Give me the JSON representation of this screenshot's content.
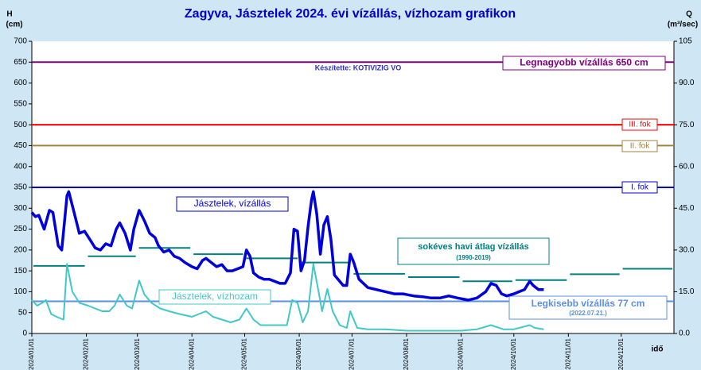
{
  "chart_data": {
    "type": "line",
    "title": "Zagyva, Jásztelek 2024. évi vízállás, vízhozam grafikon",
    "y_label": [
      "H",
      "(cm)"
    ],
    "y2_label": [
      "Q",
      "(m³/sec)"
    ],
    "x_label": "idő",
    "credit": "Készítette: KOTIVIZIG VO",
    "xlim": [
      "2024/01/01",
      "2024/12/31"
    ],
    "xticks": [
      "2024/01/01",
      "2024/02/01",
      "2024/03/01",
      "2024/04/01",
      "2024/05/01",
      "2024/06/01",
      "2024/07/01",
      "2024/08/01",
      "2024/09/01",
      "2024/10/01",
      "2024/11/01",
      "2024/12/01"
    ],
    "ylim": [
      0,
      700
    ],
    "yticks": [
      0,
      50,
      100,
      150,
      200,
      250,
      300,
      350,
      400,
      450,
      500,
      550,
      600,
      650,
      700
    ],
    "y2lim": [
      0,
      105
    ],
    "y2ticks": [
      {
        "value": 0,
        "label": "0.0"
      },
      {
        "value": 15,
        "label": "15.0"
      },
      {
        "value": 30,
        "label": "30.0"
      },
      {
        "value": 45,
        "label": "45.0"
      },
      {
        "value": 60,
        "label": "60.0"
      },
      {
        "value": 75,
        "label": "75.0"
      },
      {
        "value": 90,
        "label": "90.0"
      },
      105
    ],
    "series": [
      {
        "name": "Jásztelek, vízállás",
        "color": "#0000dd",
        "axis": "y",
        "x": [
          "2024/01/01",
          "2024/01/03",
          "2024/01/05",
          "2024/01/08",
          "2024/01/11",
          "2024/01/13",
          "2024/01/16",
          "2024/01/18",
          "2024/01/21",
          "2024/01/22",
          "2024/01/25",
          "2024/01/28",
          "2024/01/31",
          "2024/02/03",
          "2024/02/06",
          "2024/02/09",
          "2024/02/12",
          "2024/02/15",
          "2024/02/18",
          "2024/02/20",
          "2024/02/23",
          "2024/02/26",
          "2024/02/28",
          "2024/03/02",
          "2024/03/05",
          "2024/03/08",
          "2024/03/11",
          "2024/03/13",
          "2024/03/16",
          "2024/03/19",
          "2024/03/22",
          "2024/03/25",
          "2024/03/28",
          "2024/04/01",
          "2024/04/04",
          "2024/04/07",
          "2024/04/09",
          "2024/04/12",
          "2024/04/15",
          "2024/04/18",
          "2024/04/21",
          "2024/04/24",
          "2024/04/27",
          "2024/04/30",
          "2024/05/02",
          "2024/05/04",
          "2024/05/06",
          "2024/05/09",
          "2024/05/12",
          "2024/05/15",
          "2024/05/18",
          "2024/05/21",
          "2024/05/24",
          "2024/05/27",
          "2024/05/29",
          "2024/05/31",
          "2024/06/02",
          "2024/06/04",
          "2024/06/06",
          "2024/06/08",
          "2024/06/09",
          "2024/06/11",
          "2024/06/13",
          "2024/06/15",
          "2024/06/17",
          "2024/06/19",
          "2024/06/21",
          "2024/06/24",
          "2024/06/26",
          "2024/06/28",
          "2024/06/30",
          "2024/07/02",
          "2024/07/05",
          "2024/07/10",
          "2024/07/15",
          "2024/07/20",
          "2024/07/25",
          "2024/07/30",
          "2024/08/05",
          "2024/08/10",
          "2024/08/15",
          "2024/08/20",
          "2024/08/25",
          "2024/08/30",
          "2024/09/05",
          "2024/09/10",
          "2024/09/15",
          "2024/09/18",
          "2024/09/21",
          "2024/09/24",
          "2024/09/27",
          "2024/10/01",
          "2024/10/04",
          "2024/10/07",
          "2024/10/10",
          "2024/10/12",
          "2024/10/15",
          "2024/10/18"
        ],
        "values": [
          290,
          280,
          283,
          250,
          295,
          290,
          210,
          200,
          330,
          340,
          290,
          240,
          245,
          225,
          205,
          200,
          215,
          210,
          250,
          265,
          240,
          200,
          250,
          295,
          270,
          240,
          230,
          210,
          195,
          200,
          185,
          180,
          170,
          160,
          155,
          175,
          180,
          170,
          160,
          165,
          150,
          150,
          155,
          160,
          200,
          185,
          145,
          135,
          130,
          130,
          125,
          120,
          120,
          145,
          250,
          245,
          150,
          175,
          255,
          320,
          340,
          285,
          190,
          260,
          280,
          225,
          140,
          125,
          115,
          115,
          190,
          170,
          130,
          110,
          105,
          100,
          95,
          95,
          90,
          88,
          85,
          85,
          90,
          85,
          80,
          85,
          100,
          120,
          115,
          95,
          90,
          95,
          100,
          105,
          125,
          115,
          105,
          105
        ]
      },
      {
        "name": "Jásztelek, vízhozam",
        "color": "#40c8c8",
        "axis": "y2",
        "x": [
          "2024/01/01",
          "2024/01/04",
          "2024/01/07",
          "2024/01/09",
          "2024/01/12",
          "2024/01/15",
          "2024/01/19",
          "2024/01/21",
          "2024/01/24",
          "2024/01/28",
          "2024/02/02",
          "2024/02/06",
          "2024/02/10",
          "2024/02/14",
          "2024/02/17",
          "2024/02/20",
          "2024/02/24",
          "2024/02/27",
          "2024/03/02",
          "2024/03/05",
          "2024/03/09",
          "2024/03/14",
          "2024/03/19",
          "2024/03/25",
          "2024/04/01",
          "2024/04/05",
          "2024/04/09",
          "2024/04/13",
          "2024/04/18",
          "2024/04/23",
          "2024/04/28",
          "2024/05/02",
          "2024/05/06",
          "2024/05/10",
          "2024/05/15",
          "2024/05/20",
          "2024/05/25",
          "2024/05/28",
          "2024/05/31",
          "2024/06/03",
          "2024/06/06",
          "2024/06/09",
          "2024/06/12",
          "2024/06/14",
          "2024/06/17",
          "2024/06/20",
          "2024/06/24",
          "2024/06/28",
          "2024/06/30",
          "2024/07/04",
          "2024/07/10",
          "2024/07/20",
          "2024/08/01",
          "2024/08/15",
          "2024/09/01",
          "2024/09/10",
          "2024/09/18",
          "2024/09/25",
          "2024/10/01",
          "2024/10/10",
          "2024/10/13",
          "2024/10/18"
        ],
        "values": [
          12,
          10,
          11,
          12,
          7,
          6,
          5,
          25,
          15,
          11,
          10,
          9,
          8,
          8,
          10,
          14,
          10,
          9,
          19,
          14,
          11,
          9,
          8,
          7,
          6,
          7,
          8,
          6,
          5,
          4,
          5,
          9,
          5,
          3,
          3,
          3,
          3,
          12,
          11,
          4,
          8,
          25,
          15,
          8,
          16,
          8,
          3,
          2,
          8,
          2,
          1.5,
          1.5,
          1,
          1,
          1,
          1.5,
          3,
          1.5,
          1.5,
          3,
          2,
          1.5
        ]
      }
    ],
    "monthly_average": {
      "name": "sokéves havi átlag vízállás",
      "period": "(1990-2019)",
      "color": "#008080",
      "values": [
        162,
        185,
        205,
        190,
        180,
        170,
        143,
        135,
        125,
        128,
        142,
        155
      ]
    },
    "reference_lines": [
      {
        "label": "Legnagyobb vízállás 650 cm",
        "value": 650,
        "color": "#800080"
      },
      {
        "label": "III. fok",
        "value": 500,
        "color": "#ff0000"
      },
      {
        "label": "II. fok",
        "value": 450,
        "color": "#a08040"
      },
      {
        "label": "I. fok",
        "value": 350,
        "color": "#0000cc"
      },
      {
        "label": "Legkisebb vízállás 77 cm",
        "sublabel": "(2022.07.21.)",
        "value": 77,
        "color": "#5b8fe0"
      }
    ]
  }
}
